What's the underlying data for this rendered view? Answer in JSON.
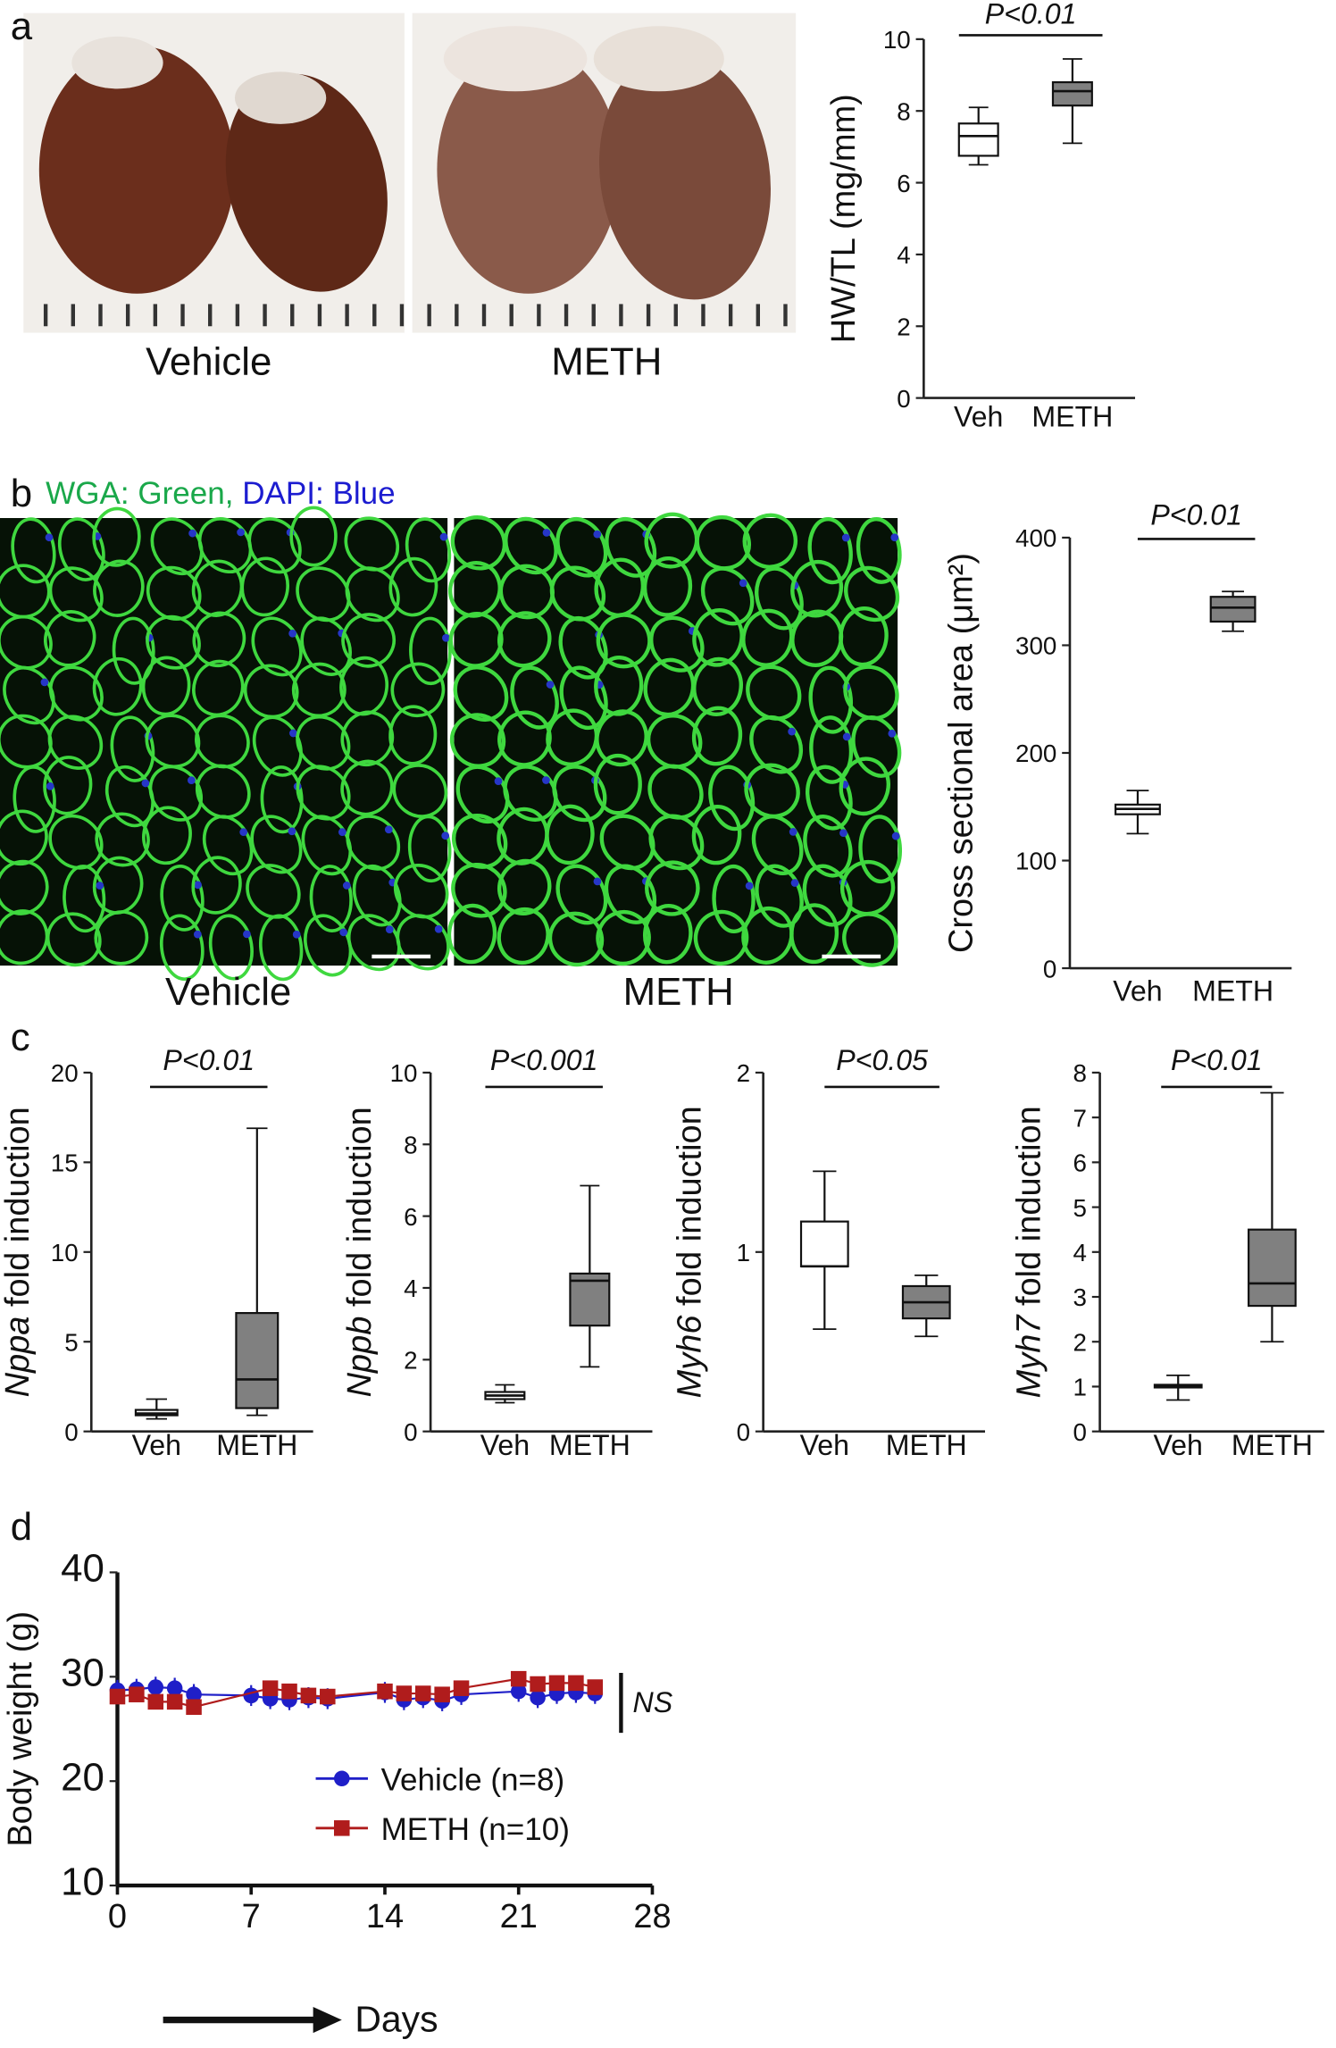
{
  "panel_labels": [
    "a",
    "b",
    "c",
    "d"
  ],
  "photo_labels": {
    "a": [
      "Vehicle",
      "METH"
    ],
    "b": [
      "Vehicle",
      "METH"
    ]
  },
  "stain_legend": [
    "WGA: Green,",
    "DAPI: Blue"
  ],
  "chart_data": [
    {
      "type": "box",
      "ylabel": "HW/TL (mg/mm)",
      "annotation": "P<0.01",
      "categories": [
        "Veh",
        "METH"
      ],
      "boxes": [
        {
          "min": 6.5,
          "q1": 6.75,
          "median": 7.3,
          "q3": 7.65,
          "max": 8.1,
          "color": "#ffffff"
        },
        {
          "min": 7.1,
          "q1": 8.15,
          "median": 8.55,
          "q3": 8.8,
          "max": 9.45,
          "color": "#808080"
        }
      ],
      "ylim": [
        0,
        10
      ],
      "yticks": [
        0,
        2,
        4,
        6,
        8,
        10
      ]
    },
    {
      "type": "box",
      "ylabel": "Cross sectional area (μm²)",
      "annotation": "P<0.01",
      "categories": [
        "Veh",
        "METH"
      ],
      "boxes": [
        {
          "min": 125,
          "q1": 143,
          "median": 148,
          "q3": 152,
          "max": 165,
          "color": "#ffffff"
        },
        {
          "min": 313,
          "q1": 322,
          "median": 335,
          "q3": 345,
          "max": 350,
          "color": "#808080"
        }
      ],
      "ylim": [
        0,
        400
      ],
      "yticks": [
        0,
        100,
        200,
        300,
        400
      ]
    },
    {
      "type": "box",
      "ylabel_gene": "Nppa",
      "ylabel": "fold induction",
      "annotation": "P<0.01",
      "categories": [
        "Veh",
        "METH"
      ],
      "boxes": [
        {
          "min": 0.7,
          "q1": 0.9,
          "median": 1.0,
          "q3": 1.2,
          "max": 1.8,
          "color": "#ffffff"
        },
        {
          "min": 0.9,
          "q1": 1.3,
          "median": 2.9,
          "q3": 6.6,
          "max": 16.9,
          "color": "#808080"
        }
      ],
      "ylim": [
        0,
        20
      ],
      "yticks": [
        0,
        5,
        10,
        15,
        20
      ]
    },
    {
      "type": "box",
      "ylabel_gene": "Nppb",
      "ylabel": "fold induction",
      "annotation": "P<0.001",
      "categories": [
        "Veh",
        "METH"
      ],
      "boxes": [
        {
          "min": 0.8,
          "q1": 0.9,
          "median": 1.0,
          "q3": 1.1,
          "max": 1.3,
          "color": "#ffffff"
        },
        {
          "min": 1.8,
          "q1": 2.95,
          "median": 4.2,
          "q3": 4.4,
          "max": 6.85,
          "color": "#808080"
        }
      ],
      "ylim": [
        0,
        10
      ],
      "yticks": [
        0,
        2,
        4,
        6,
        8,
        10
      ]
    },
    {
      "type": "box",
      "ylabel_gene": "Myh6",
      "ylabel": "fold induction",
      "annotation": "P<0.05",
      "categories": [
        "Veh",
        "METH"
      ],
      "boxes": [
        {
          "min": 0.57,
          "q1": 0.92,
          "median": 0.92,
          "q3": 1.17,
          "max": 1.45,
          "color": "#ffffff"
        },
        {
          "min": 0.53,
          "q1": 0.63,
          "median": 0.72,
          "q3": 0.81,
          "max": 0.87,
          "color": "#808080"
        }
      ],
      "ylim": [
        0,
        2
      ],
      "yticks": [
        0,
        1,
        2
      ]
    },
    {
      "type": "box",
      "ylabel_gene": "Myh7",
      "ylabel": "fold induction",
      "annotation": "P<0.01",
      "categories": [
        "Veh",
        "METH"
      ],
      "boxes": [
        {
          "min": 0.7,
          "q1": 0.98,
          "median": 1.0,
          "q3": 1.04,
          "max": 1.25,
          "color": "#ffffff"
        },
        {
          "min": 2.0,
          "q1": 2.8,
          "median": 3.3,
          "q3": 4.5,
          "max": 7.55,
          "color": "#808080"
        }
      ],
      "ylim": [
        0,
        8
      ],
      "yticks": [
        0,
        1,
        2,
        3,
        4,
        5,
        6,
        7,
        8
      ]
    },
    {
      "type": "line",
      "ylabel": "Body weight (g)",
      "xlabel": "Days",
      "annotation": "NS",
      "xlim": [
        0,
        28
      ],
      "xticks": [
        0,
        7,
        14,
        21,
        28
      ],
      "ylim": [
        10,
        40
      ],
      "yticks": [
        10,
        20,
        30,
        40
      ],
      "series": [
        {
          "name": "Vehicle (n=8)",
          "color": "#1f1fc8",
          "marker": "circle",
          "x": [
            0,
            1,
            2,
            3,
            4,
            7,
            8,
            9,
            10,
            11,
            14,
            15,
            16,
            17,
            18,
            21,
            22,
            23,
            24,
            25
          ],
          "values": [
            28.7,
            28.8,
            29.0,
            28.9,
            28.3,
            28.2,
            27.9,
            27.8,
            28.0,
            27.9,
            28.5,
            27.8,
            28.0,
            27.7,
            28.3,
            28.6,
            28.0,
            28.4,
            28.5,
            28.4
          ],
          "errors": [
            1.0,
            1.0,
            1.0,
            1.0,
            1.0,
            1.0,
            1.0,
            1.0,
            1.0,
            1.0,
            1.0,
            1.0,
            1.0,
            1.0,
            1.0,
            1.0,
            1.0,
            1.0,
            1.0,
            1.0
          ]
        },
        {
          "name": "METH (n=10)",
          "color": "#b01c1c",
          "marker": "square",
          "x": [
            0,
            1,
            2,
            3,
            4,
            8,
            9,
            10,
            11,
            14,
            15,
            16,
            17,
            18,
            21,
            22,
            23,
            24,
            25
          ],
          "values": [
            28.1,
            28.3,
            27.6,
            27.6,
            27.1,
            28.9,
            28.6,
            28.2,
            28.1,
            28.6,
            28.4,
            28.4,
            28.3,
            28.9,
            29.8,
            29.3,
            29.4,
            29.4,
            29.0
          ],
          "errors": [
            0.6,
            0.6,
            0.6,
            0.6,
            0.6,
            0.6,
            0.6,
            0.6,
            0.6,
            0.6,
            0.6,
            0.6,
            0.6,
            0.6,
            0.6,
            0.6,
            0.6,
            0.6,
            0.6
          ]
        }
      ]
    }
  ]
}
